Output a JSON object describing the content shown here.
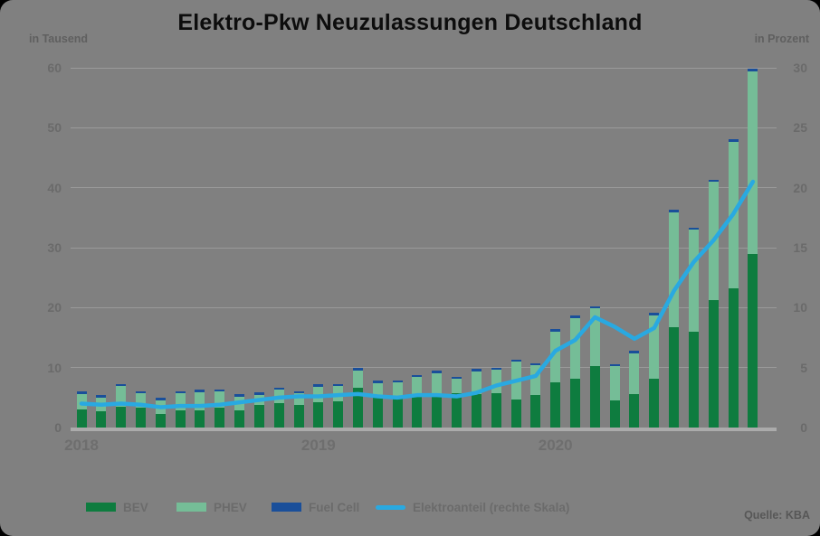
{
  "title": "Elektro-Pkw Neuzulassungen Deutschland",
  "axes": {
    "left_unit": "in Tausend",
    "right_unit": "in Prozent"
  },
  "legend": [
    {
      "label": "BEV",
      "color": "#0e7c3f",
      "swatch": "bar"
    },
    {
      "label": "PHEV",
      "color": "#75bd97",
      "swatch": "bar"
    },
    {
      "label": "Fuel Cell",
      "color": "#1a4f9a",
      "swatch": "bar"
    },
    {
      "label": "Elektroanteil (rechte Skala)",
      "color": "#29a9e1",
      "swatch": "line"
    }
  ],
  "source": "Quelle: KBA",
  "chart_data": {
    "type": "bar",
    "subtype": "stacked-monthly-bars-with-percentage-line",
    "title": "Elektro-Pkw Neuzulassungen Deutschland",
    "categories": [
      "2018-01",
      "2018-02",
      "2018-03",
      "2018-04",
      "2018-05",
      "2018-06",
      "2018-07",
      "2018-08",
      "2018-09",
      "2018-10",
      "2018-11",
      "2018-12",
      "2019-01",
      "2019-02",
      "2019-03",
      "2019-04",
      "2019-05",
      "2019-06",
      "2019-07",
      "2019-08",
      "2019-09",
      "2019-10",
      "2019-11",
      "2019-12",
      "2020-01",
      "2020-02",
      "2020-03",
      "2020-04",
      "2020-05",
      "2020-06",
      "2020-07",
      "2020-08",
      "2020-09",
      "2020-10",
      "2020-11"
    ],
    "series": [
      {
        "name": "BEV",
        "type": "bar",
        "axis": "left",
        "color": "#0e7c3f",
        "values": [
          3.0,
          2.7,
          3.5,
          3.3,
          2.2,
          2.9,
          2.9,
          3.3,
          2.9,
          3.8,
          4.0,
          3.7,
          4.2,
          4.4,
          6.6,
          5.0,
          5.2,
          5.2,
          5.4,
          5.7,
          5.6,
          5.7,
          4.7,
          5.5,
          7.5,
          8.2,
          10.3,
          4.6,
          5.6,
          8.1,
          16.8,
          16.0,
          21.2,
          23.2,
          29.0
        ]
      },
      {
        "name": "PHEV",
        "type": "bar",
        "axis": "left",
        "color": "#75bd97",
        "values": [
          2.6,
          2.3,
          3.4,
          2.4,
          2.4,
          2.8,
          3.0,
          2.7,
          2.3,
          1.7,
          2.3,
          2.0,
          2.6,
          2.5,
          2.9,
          2.4,
          2.3,
          3.2,
          3.7,
          2.4,
          3.8,
          3.9,
          6.3,
          4.9,
          8.5,
          10.1,
          9.6,
          5.6,
          6.8,
          10.6,
          19.1,
          17.0,
          19.8,
          24.5,
          30.4
        ]
      },
      {
        "name": "Fuel Cell",
        "type": "bar",
        "axis": "left",
        "color": "#1a4f9a",
        "values": [
          0.3,
          0.3,
          0.3,
          0.3,
          0.3,
          0.3,
          0.3,
          0.3,
          0.3,
          0.3,
          0.3,
          0.3,
          0.3,
          0.3,
          0.3,
          0.3,
          0.3,
          0.3,
          0.3,
          0.3,
          0.3,
          0.3,
          0.3,
          0.3,
          0.3,
          0.3,
          0.3,
          0.3,
          0.3,
          0.3,
          0.3,
          0.3,
          0.3,
          0.3,
          0.3
        ]
      },
      {
        "name": "Elektroanteil (rechte Skala)",
        "type": "line",
        "axis": "right",
        "color": "#29a9e1",
        "values": [
          2.0,
          1.9,
          2.0,
          1.9,
          1.7,
          1.8,
          1.8,
          1.9,
          2.1,
          2.3,
          2.5,
          2.6,
          2.6,
          2.7,
          2.8,
          2.6,
          2.5,
          2.7,
          2.7,
          2.6,
          2.9,
          3.5,
          3.9,
          4.3,
          6.4,
          7.3,
          9.2,
          8.4,
          7.4,
          8.3,
          11.4,
          13.8,
          15.6,
          17.8,
          20.5
        ]
      }
    ],
    "left_axis": {
      "label": "in Tausend",
      "min": 0,
      "max": 60,
      "ticks": [
        0,
        10,
        20,
        30,
        40,
        50,
        60
      ]
    },
    "right_axis": {
      "label": "in Prozent",
      "min": 0,
      "max": 30,
      "ticks": [
        0,
        5,
        10,
        15,
        20,
        25,
        30
      ]
    },
    "x_year_ticks": [
      {
        "label": "2018",
        "month_index": 0
      },
      {
        "label": "2019",
        "month_index": 12
      },
      {
        "label": "2020",
        "month_index": 24
      }
    ],
    "grid": "horizontal",
    "legend_position": "bottom",
    "source": "Quelle: KBA",
    "colors": {
      "background": "#808080",
      "gridline": "#9a9a9a",
      "baseline": "#ababab",
      "text": "#6a6a6a",
      "title": "#0d0d0d"
    }
  }
}
